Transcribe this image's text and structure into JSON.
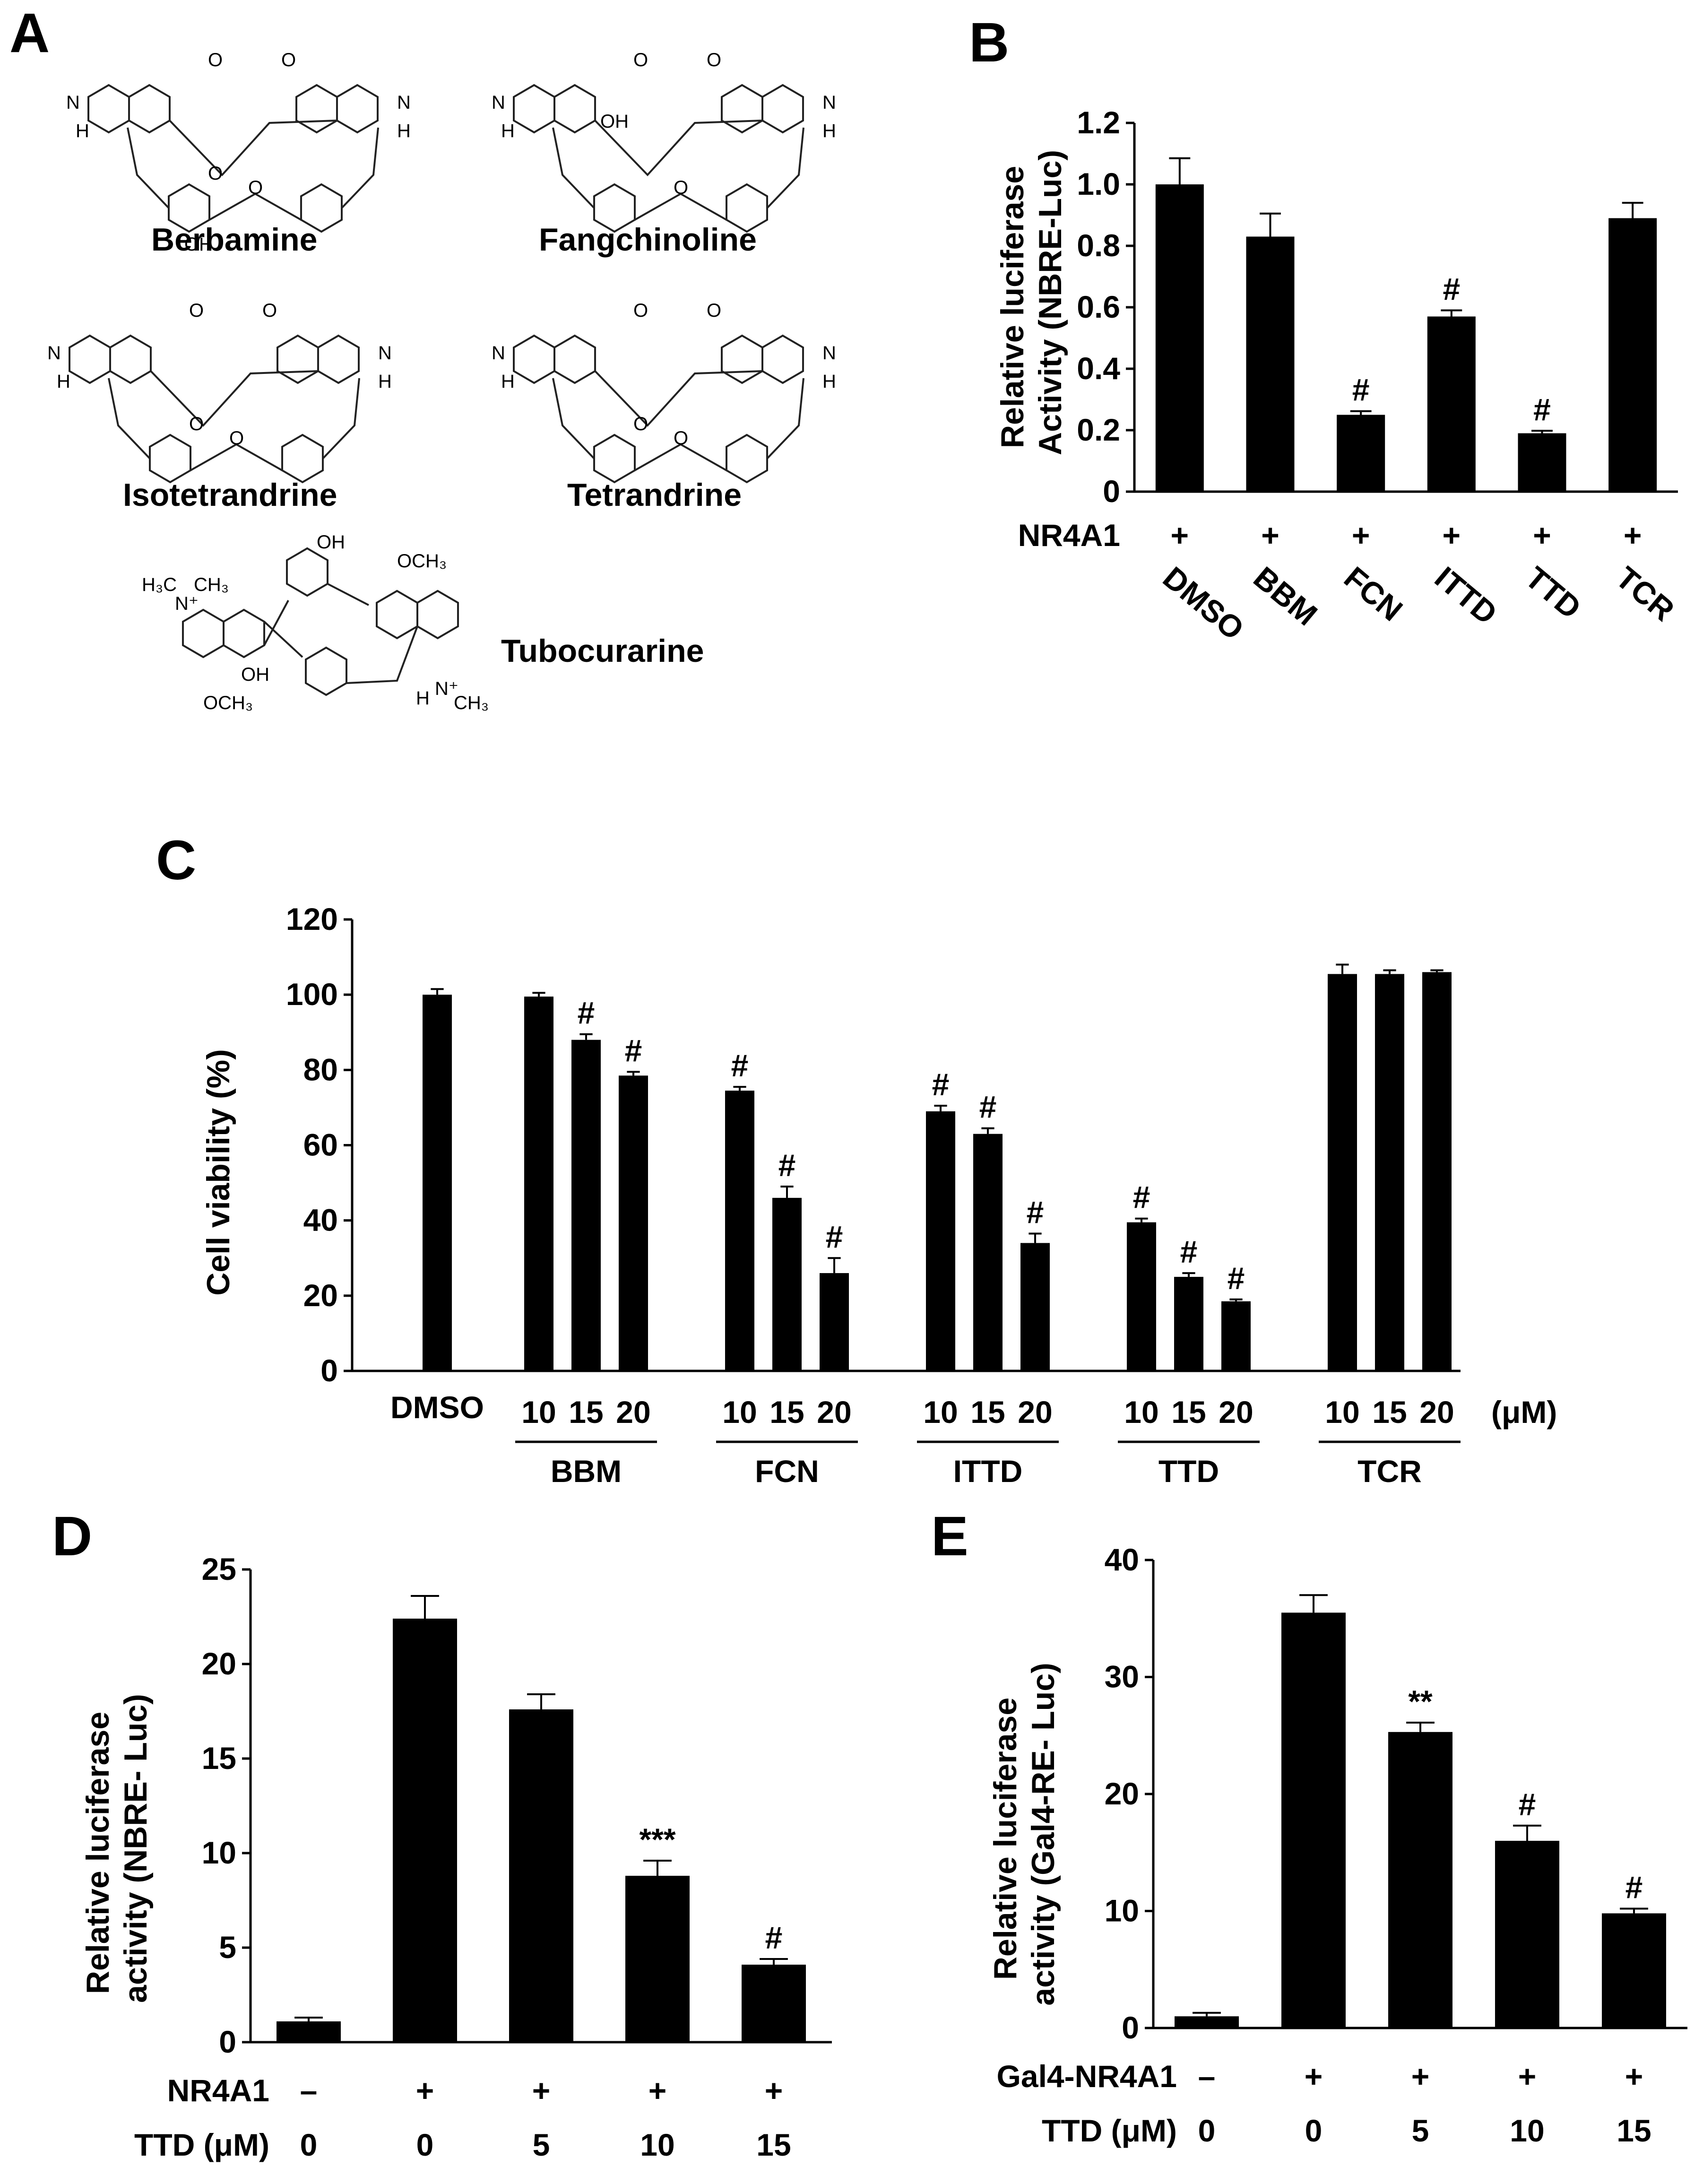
{
  "panel_letters": {
    "a": "A",
    "b": "B",
    "c": "C",
    "d": "D",
    "e": "E"
  },
  "compounds": [
    "Berbamine",
    "Fangchinoline",
    "Isotetrandrine",
    "Tetrandrine",
    "Tubocurarine"
  ],
  "chart_data": [
    {
      "panel": "B",
      "type": "bar",
      "ylabel": "Relative luciferase Activity (NBRE-Luc)",
      "ylim": [
        0,
        1.2
      ],
      "yticks": [
        "0",
        "0.2",
        "0.4",
        "0.6",
        "0.8",
        "1.0",
        "1.2"
      ],
      "row_label": "NR4A1",
      "row_values": [
        "+",
        "+",
        "+",
        "+",
        "+",
        "+"
      ],
      "categories": [
        "DMSO",
        "BBM",
        "FCN",
        "ITTD",
        "TTD",
        "TCR"
      ],
      "values": [
        1.0,
        0.83,
        0.25,
        0.57,
        0.19,
        0.89
      ],
      "errors": [
        0.085,
        0.075,
        0.012,
        0.02,
        0.008,
        0.05
      ],
      "marks": [
        "",
        "",
        "#",
        "#",
        "#",
        ""
      ]
    },
    {
      "panel": "C",
      "type": "bar",
      "ylabel": "Cell viability (%)",
      "ylim": [
        0,
        120
      ],
      "yticks": [
        "0",
        "20",
        "40",
        "60",
        "80",
        "100",
        "120"
      ],
      "unit": "(μM)",
      "dmso_label": "DMSO",
      "groups": [
        {
          "name": "DMSO",
          "doses": [],
          "values": [
            100
          ],
          "errors": [
            1.5
          ],
          "marks": [
            ""
          ]
        },
        {
          "name": "BBM",
          "doses": [
            "10",
            "15",
            "20"
          ],
          "values": [
            99.5,
            88,
            78.5
          ],
          "errors": [
            1.0,
            1.5,
            1.0
          ],
          "marks": [
            "",
            "#",
            "#"
          ]
        },
        {
          "name": "FCN",
          "doses": [
            "10",
            "15",
            "20"
          ],
          "values": [
            74.5,
            46,
            26
          ],
          "errors": [
            1.0,
            3.0,
            4.0
          ],
          "marks": [
            "#",
            "#",
            "#"
          ]
        },
        {
          "name": "ITTD",
          "doses": [
            "10",
            "15",
            "20"
          ],
          "values": [
            69,
            63,
            34
          ],
          "errors": [
            1.5,
            1.5,
            2.5
          ],
          "marks": [
            "#",
            "#",
            "#"
          ]
        },
        {
          "name": "TTD",
          "doses": [
            "10",
            "15",
            "20"
          ],
          "values": [
            39.5,
            25,
            18.5
          ],
          "errors": [
            1.0,
            1.0,
            0.5
          ],
          "marks": [
            "#",
            "#",
            "#"
          ]
        },
        {
          "name": "TCR",
          "doses": [
            "10",
            "15",
            "20"
          ],
          "values": [
            105.5,
            105.5,
            106
          ],
          "errors": [
            2.5,
            1.0,
            0.5
          ],
          "marks": [
            "",
            "",
            ""
          ]
        }
      ]
    },
    {
      "panel": "D",
      "type": "bar",
      "ylabel": "Relative luciferase activity (NBRE- Luc)",
      "ylim": [
        0,
        25
      ],
      "yticks": [
        "0",
        "5",
        "10",
        "15",
        "20",
        "25"
      ],
      "row1_label": "NR4A1",
      "row1_values": [
        "–",
        "+",
        "+",
        "+",
        "+"
      ],
      "row2_label": "TTD (μM)",
      "row2_values": [
        "0",
        "0",
        "5",
        "10",
        "15"
      ],
      "values": [
        1.1,
        22.4,
        17.6,
        8.8,
        4.1
      ],
      "errors": [
        0.2,
        1.2,
        0.8,
        0.8,
        0.3
      ],
      "marks": [
        "",
        "",
        "",
        "***",
        "#"
      ]
    },
    {
      "panel": "E",
      "type": "bar",
      "ylabel": "Relative luciferase activity (Gal4-RE- Luc)",
      "ylim": [
        0,
        40
      ],
      "yticks": [
        "0",
        "10",
        "20",
        "30",
        "40"
      ],
      "row1_label": "Gal4-NR4A1",
      "row1_values": [
        "–",
        "+",
        "+",
        "+",
        "+"
      ],
      "row2_label": "TTD (μM)",
      "row2_values": [
        "0",
        "0",
        "5",
        "10",
        "15"
      ],
      "values": [
        1.0,
        35.5,
        25.3,
        16.0,
        9.8
      ],
      "errors": [
        0.3,
        1.5,
        0.8,
        1.3,
        0.4
      ],
      "marks": [
        "",
        "",
        "**",
        "#",
        "#"
      ]
    }
  ]
}
